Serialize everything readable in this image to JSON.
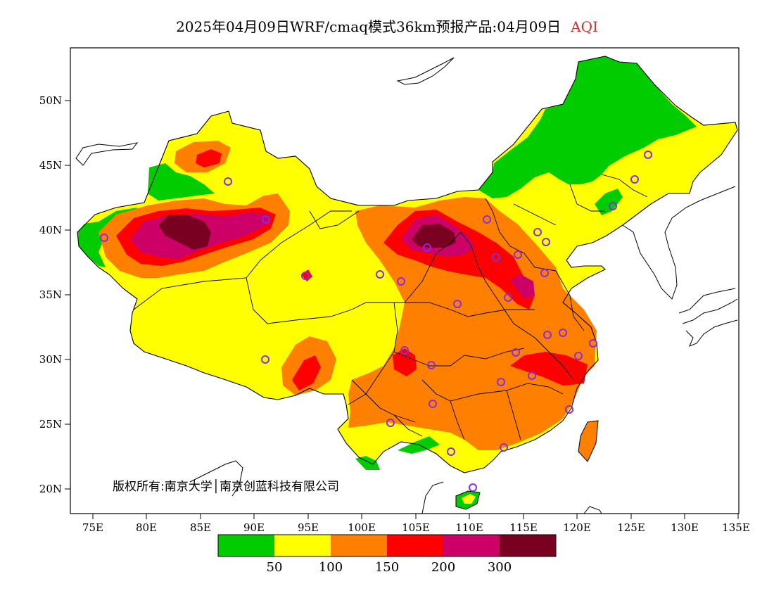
{
  "title": {
    "text": "2025年04月09日WRF/cmaq模式36km预报产品:04月09日",
    "variable": "AQI",
    "variable_color": "#d03030"
  },
  "axes": {
    "lat_labels": [
      "20N",
      "25N",
      "30N",
      "35N",
      "40N",
      "45N",
      "50N"
    ],
    "lon_labels": [
      "75E",
      "80E",
      "85E",
      "90E",
      "95E",
      "100E",
      "105E",
      "110E",
      "115E",
      "120E",
      "125E",
      "130E",
      "135E"
    ]
  },
  "copyright": "版权所有:南京大学│南京创蓝科技有限公司",
  "legend": {
    "colors": [
      "#00cc00",
      "#ffff00",
      "#ff8000",
      "#ff0000",
      "#cc0066",
      "#7a0022"
    ],
    "labels": [
      "50",
      "100",
      "150",
      "200",
      "300"
    ]
  },
  "map_colors": {
    "good": "#00cc00",
    "moderate": "#ffff00",
    "unhealthy_sensitive": "#ff8000",
    "unhealthy": "#ff0000",
    "very_unhealthy": "#cc0066",
    "hazardous": "#7a0022",
    "station_marker": "#8a2be2"
  }
}
